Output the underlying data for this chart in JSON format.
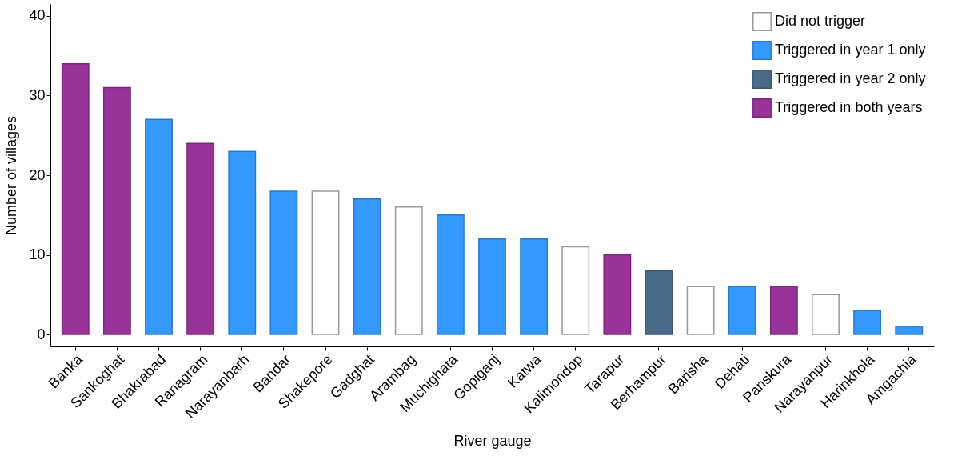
{
  "chart_data": {
    "type": "bar",
    "xlabel": "River gauge",
    "ylabel": "Number of villages",
    "categories": [
      "Banka",
      "Sankoghat",
      "Bhakrabad",
      "Ranagram",
      "Narayanbarh",
      "Bandar",
      "Shakepore",
      "Gadghat",
      "Arambag",
      "Muchighata",
      "Gopiganj",
      "Katwa",
      "Kalimondop",
      "Tarapur",
      "Berhampur",
      "Barisha",
      "Dehati",
      "Panskura",
      "Narayanpur",
      "Harinkhola",
      "Amgachia"
    ],
    "series": [
      {
        "name": "Did not trigger",
        "color": "#ffffff",
        "values": [
          null,
          null,
          null,
          null,
          null,
          null,
          18,
          null,
          16,
          null,
          null,
          null,
          11,
          null,
          null,
          6,
          null,
          null,
          5,
          null,
          null
        ]
      },
      {
        "name": "Triggered in year 1 only",
        "color": "#3399ff",
        "values": [
          null,
          null,
          27,
          null,
          23,
          18,
          null,
          17,
          null,
          15,
          12,
          12,
          null,
          null,
          null,
          null,
          6,
          null,
          null,
          3,
          1
        ]
      },
      {
        "name": "Triggered in year 2 only",
        "color": "#4a6b8c",
        "values": [
          null,
          null,
          null,
          null,
          null,
          null,
          null,
          null,
          null,
          null,
          null,
          null,
          null,
          null,
          8,
          null,
          null,
          null,
          null,
          null,
          null
        ]
      },
      {
        "name": "Triggered in both years",
        "color": "#993399",
        "values": [
          34,
          31,
          null,
          24,
          null,
          null,
          null,
          null,
          null,
          null,
          null,
          null,
          null,
          10,
          null,
          null,
          null,
          6,
          null,
          null,
          null
        ]
      }
    ],
    "ylim": [
      -1.5,
      41.5
    ],
    "yticks": [
      0,
      10,
      20,
      30,
      40
    ],
    "grid": false,
    "legend": "top right"
  }
}
